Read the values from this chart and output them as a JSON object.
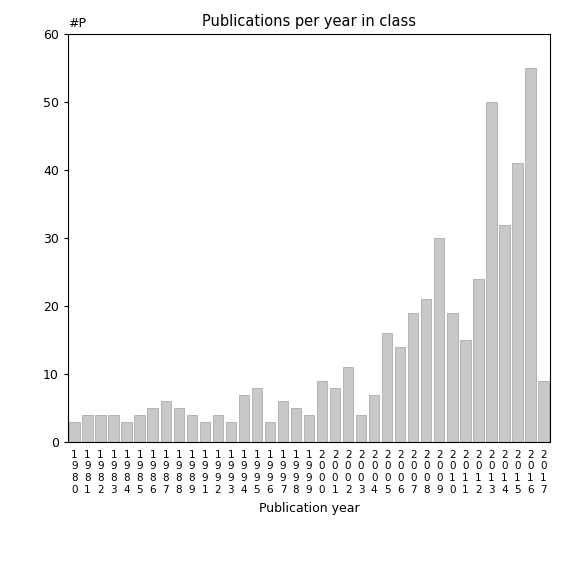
{
  "years": [
    "1980",
    "1981",
    "1982",
    "1983",
    "1984",
    "1985",
    "1986",
    "1987",
    "1988",
    "1989",
    "1991",
    "1992",
    "1993",
    "1994",
    "1995",
    "1996",
    "1997",
    "1998",
    "1999",
    "2000",
    "2001",
    "2002",
    "2003",
    "2004",
    "2005",
    "2006",
    "2007",
    "2008",
    "2009",
    "2010",
    "2011",
    "2012",
    "2013",
    "2014",
    "2015",
    "2016",
    "2017"
  ],
  "values": [
    3,
    4,
    4,
    4,
    3,
    4,
    5,
    6,
    5,
    4,
    3,
    4,
    3,
    7,
    8,
    3,
    6,
    5,
    4,
    9,
    8,
    11,
    4,
    7,
    16,
    14,
    19,
    21,
    30,
    19,
    15,
    24,
    50,
    32,
    41,
    55,
    9
  ],
  "title": "Publications per year in class",
  "xlabel": "Publication year",
  "ylabel": "#P",
  "ylim": [
    0,
    60
  ],
  "yticks": [
    0,
    10,
    20,
    30,
    40,
    50,
    60
  ],
  "bar_color": "#c8c8c8",
  "bar_edgecolor": "#a0a0a0",
  "background_color": "#ffffff",
  "figsize": [
    5.67,
    5.67
  ],
  "dpi": 100
}
